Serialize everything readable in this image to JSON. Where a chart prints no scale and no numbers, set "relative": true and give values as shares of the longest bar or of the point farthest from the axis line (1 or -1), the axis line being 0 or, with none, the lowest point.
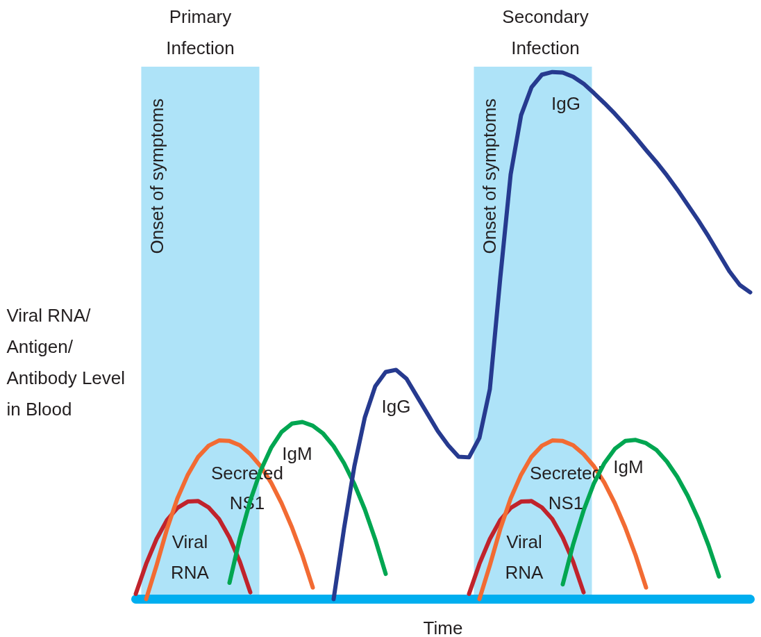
{
  "chart_data": {
    "type": "line",
    "relative": true,
    "xlabel": "Time",
    "ylabel": "Viral RNA/ Antigen/ Antibody Level in Blood",
    "categories": [
      null,
      null,
      null,
      null,
      null,
      null,
      null,
      null,
      null,
      null,
      null,
      null,
      null,
      null,
      null,
      null,
      null,
      null,
      null,
      null,
      null,
      null,
      null,
      null,
      null,
      null,
      null,
      null,
      null,
      null,
      null,
      null,
      null,
      null,
      null,
      null,
      null,
      null,
      null,
      null,
      null,
      null,
      null,
      null,
      null,
      null,
      null,
      null,
      null,
      null,
      null,
      null,
      null,
      null,
      null,
      null,
      null,
      null,
      null,
      null
    ],
    "series": [
      {
        "name": "Viral RNA",
        "color": "#c0232c",
        "values": [
          0.01,
          0.067,
          0.114,
          0.15,
          0.173,
          0.185,
          0.186,
          0.174,
          0.152,
          0.117,
          0.071,
          0.013,
          null,
          null,
          null,
          null,
          null,
          null,
          null,
          null,
          null,
          null,
          null,
          null,
          null,
          null,
          null,
          null,
          null,
          null,
          null,
          null,
          0.01,
          0.067,
          0.114,
          0.15,
          0.173,
          0.185,
          0.186,
          0.174,
          0.152,
          0.117,
          0.071,
          0.013,
          null,
          null,
          null,
          null,
          null,
          null,
          null,
          null,
          null,
          null,
          null,
          null,
          null,
          null,
          null,
          null
        ]
      },
      {
        "name": "Secreted NS1",
        "color": "#f26b33",
        "values": [
          null,
          0,
          0.064,
          0.133,
          0.191,
          0.236,
          0.27,
          0.291,
          0.301,
          0.3,
          0.292,
          0.275,
          0.252,
          0.221,
          0.182,
          0.136,
          0.083,
          0.022,
          null,
          null,
          null,
          null,
          null,
          null,
          null,
          null,
          null,
          null,
          null,
          null,
          null,
          null,
          null,
          0,
          0.064,
          0.133,
          0.191,
          0.236,
          0.27,
          0.291,
          0.301,
          0.3,
          0.292,
          0.275,
          0.252,
          0.221,
          0.182,
          0.136,
          0.083,
          0.022,
          null,
          null,
          null,
          null,
          null,
          null,
          null,
          null,
          null,
          null
        ]
      },
      {
        "name": "IgM",
        "color": "#00a651",
        "values": [
          null,
          null,
          null,
          null,
          null,
          null,
          null,
          null,
          null,
          0.031,
          0.116,
          0.187,
          0.244,
          0.287,
          0.317,
          0.333,
          0.336,
          0.329,
          0.314,
          0.29,
          0.258,
          0.218,
          0.17,
          0.113,
          0.048,
          null,
          null,
          null,
          null,
          null,
          null,
          null,
          null,
          null,
          null,
          null,
          null,
          null,
          null,
          null,
          null,
          0.028,
          0.104,
          0.168,
          0.22,
          0.258,
          0.285,
          0.3,
          0.302,
          0.296,
          0.283,
          0.261,
          0.232,
          0.196,
          0.153,
          0.102,
          0.043,
          null,
          null,
          null
        ]
      },
      {
        "name": "IgG",
        "color": "#263a8f",
        "values": [
          null,
          null,
          null,
          null,
          null,
          null,
          null,
          null,
          null,
          null,
          null,
          null,
          null,
          null,
          null,
          null,
          null,
          null,
          null,
          0,
          0.134,
          0.253,
          0.345,
          0.404,
          0.431,
          0.435,
          0.418,
          0.385,
          0.352,
          0.319,
          0.292,
          0.27,
          0.269,
          0.306,
          0.398,
          0.609,
          0.806,
          0.918,
          0.971,
          0.995,
          1.0,
          0.999,
          0.991,
          0.978,
          0.96,
          0.941,
          0.921,
          0.899,
          0.876,
          0.852,
          0.829,
          0.804,
          0.777,
          0.748,
          0.719,
          0.688,
          0.655,
          0.622,
          0.596,
          0.582
        ]
      }
    ],
    "annotations": [
      "Primary Infection",
      "Secondary Infection",
      "Onset of symptoms",
      "Onset of symptoms"
    ],
    "tick_labels": false,
    "grid": false,
    "legend": false,
    "line_style": "solid",
    "marker": "none"
  }
}
